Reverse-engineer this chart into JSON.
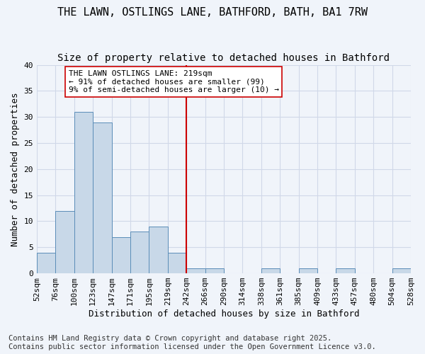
{
  "title": "THE LAWN, OSTLINGS LANE, BATHFORD, BATH, BA1 7RW",
  "subtitle": "Size of property relative to detached houses in Bathford",
  "xlabel": "Distribution of detached houses by size in Bathford",
  "ylabel": "Number of detached properties",
  "bar_values": [
    4,
    12,
    31,
    29,
    7,
    8,
    9,
    4,
    1,
    1,
    0,
    0,
    1,
    0,
    1,
    0,
    1,
    0,
    0,
    1
  ],
  "bin_labels": [
    "52sqm",
    "76sqm",
    "100sqm",
    "123sqm",
    "147sqm",
    "171sqm",
    "195sqm",
    "219sqm",
    "242sqm",
    "266sqm",
    "290sqm",
    "314sqm",
    "338sqm",
    "361sqm",
    "385sqm",
    "409sqm",
    "433sqm",
    "457sqm",
    "480sqm",
    "504sqm",
    "528sqm"
  ],
  "bar_color": "#c8d8e8",
  "bar_edge_color": "#5b8db8",
  "highlight_line_color": "#cc0000",
  "highlight_bin_index": 7,
  "annotation_text": "THE LAWN OSTLINGS LANE: 219sqm\n← 91% of detached houses are smaller (99)\n9% of semi-detached houses are larger (10) →",
  "annotation_box_color": "#ffffff",
  "annotation_border_color": "#cc0000",
  "ylim": [
    0,
    40
  ],
  "yticks": [
    0,
    5,
    10,
    15,
    20,
    25,
    30,
    35,
    40
  ],
  "grid_color": "#d0d8e8",
  "background_color": "#f0f4fa",
  "footnote1": "Contains HM Land Registry data © Crown copyright and database right 2025.",
  "footnote2": "Contains public sector information licensed under the Open Government Licence v3.0.",
  "title_fontsize": 11,
  "subtitle_fontsize": 10,
  "axis_label_fontsize": 9,
  "tick_fontsize": 8,
  "annotation_fontsize": 8,
  "footnote_fontsize": 7.5
}
